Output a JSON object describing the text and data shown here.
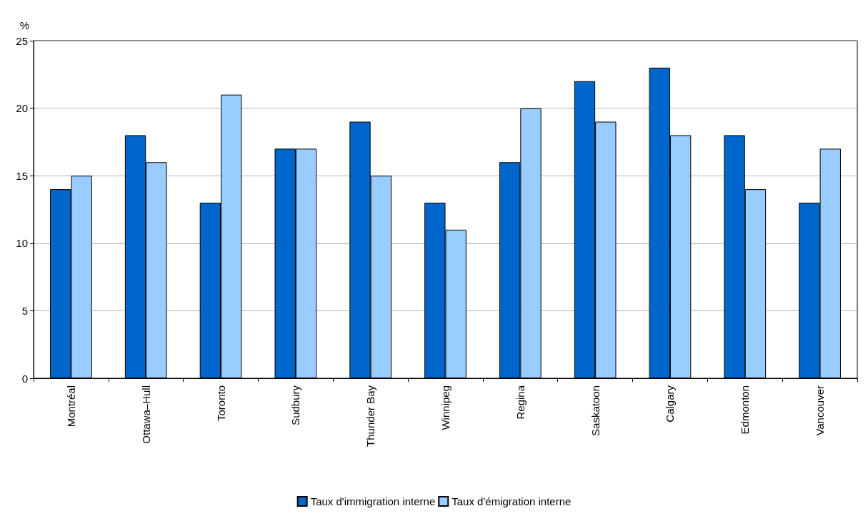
{
  "chart_data": {
    "type": "bar",
    "ylabel": "%",
    "categories": [
      "Montréal",
      "Ottawa–Hull",
      "Toronto",
      "Sudbury",
      "Thunder Bay",
      "Winnipeg",
      "Regina",
      "Saskatoon",
      "Calgary",
      "Edmonton",
      "Vancouver"
    ],
    "series": [
      {
        "name": "Taux d'immigration interne",
        "color": "#0066cc",
        "values": [
          14,
          18,
          13,
          17,
          19,
          13,
          16,
          22,
          23,
          18,
          13
        ]
      },
      {
        "name": "Taux d'émigration interne",
        "color": "#99ccff",
        "values": [
          15,
          16,
          21,
          17,
          15,
          11,
          20,
          19,
          18,
          14,
          17
        ]
      }
    ],
    "ylim": [
      0,
      25
    ],
    "yticks": [
      0,
      5,
      10,
      15,
      20,
      25
    ],
    "grid": "y",
    "legend": "bottom"
  }
}
